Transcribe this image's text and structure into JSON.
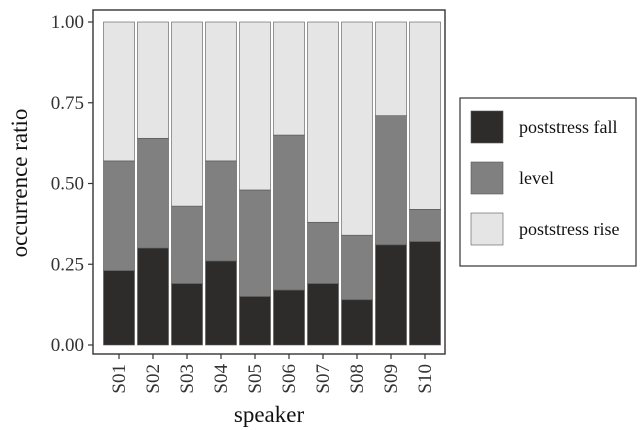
{
  "chart_data": {
    "type": "bar",
    "stacked": true,
    "xlabel": "speaker",
    "ylabel": "occurrence ratio",
    "ylim": [
      0,
      1
    ],
    "yticks": [
      "0.00",
      "0.25",
      "0.50",
      "0.75",
      "1.00"
    ],
    "grid": false,
    "legend_position": "right",
    "categories": [
      "S01",
      "S02",
      "S03",
      "S04",
      "S05",
      "S06",
      "S07",
      "S08",
      "S09",
      "S10"
    ],
    "series": [
      {
        "name": "poststress fall",
        "color": "#2e2b2b",
        "values": [
          0.23,
          0.3,
          0.19,
          0.26,
          0.15,
          0.17,
          0.19,
          0.14,
          0.31,
          0.32
        ]
      },
      {
        "name": "level",
        "color": "#808080",
        "values": [
          0.34,
          0.34,
          0.24,
          0.31,
          0.33,
          0.48,
          0.19,
          0.2,
          0.4,
          0.1
        ]
      },
      {
        "name": "poststress rise",
        "color": "#e5e5e5",
        "values": [
          0.43,
          0.36,
          0.57,
          0.43,
          0.52,
          0.35,
          0.62,
          0.66,
          0.29,
          0.58
        ]
      }
    ]
  }
}
